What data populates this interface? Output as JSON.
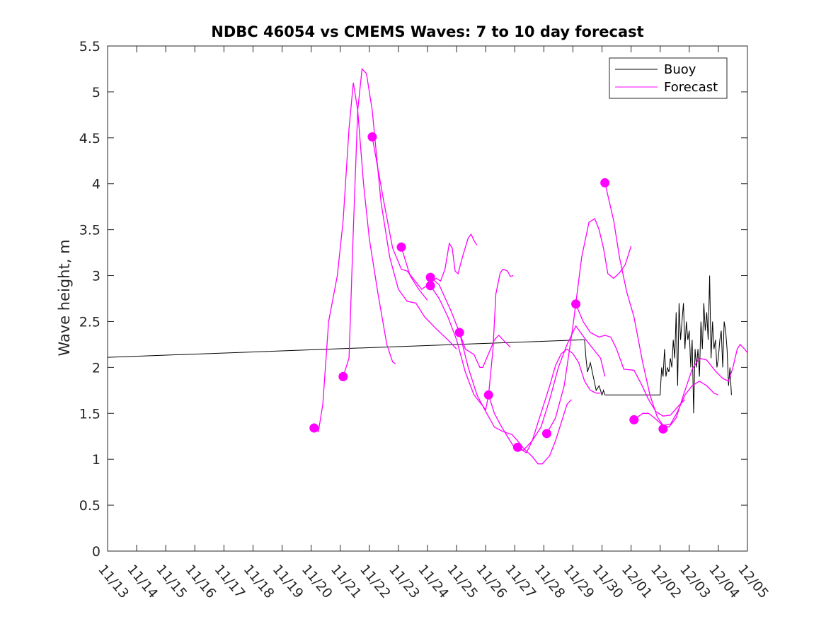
{
  "chart_data": {
    "type": "line",
    "title": "NDBC 46054 vs CMEMS Waves: 7 to 10 day forecast",
    "xlabel": "",
    "ylabel": "Wave height, m",
    "x_unit": "days since 11/13",
    "xlim": [
      0,
      22
    ],
    "ylim": [
      0,
      5.5
    ],
    "xticks": [
      0,
      1,
      2,
      3,
      4,
      5,
      6,
      7,
      8,
      9,
      10,
      11,
      12,
      13,
      14,
      15,
      16,
      17,
      18,
      19,
      20,
      21,
      22
    ],
    "xtick_labels": [
      "11/13",
      "11/14",
      "11/15",
      "11/16",
      "11/17",
      "11/18",
      "11/19",
      "11/20",
      "11/21",
      "11/22",
      "11/23",
      "11/24",
      "11/25",
      "11/26",
      "11/27",
      "11/28",
      "11/29",
      "11/30",
      "12/01",
      "12/02",
      "12/03",
      "12/04",
      "12/05"
    ],
    "yticks": [
      0,
      0.5,
      1,
      1.5,
      2,
      2.5,
      3,
      3.5,
      4,
      4.5,
      5,
      5.5
    ],
    "ytick_labels": [
      "0",
      "0.5",
      "1",
      "1.5",
      "2",
      "2.5",
      "3",
      "3.5",
      "4",
      "4.5",
      "5",
      "5.5"
    ],
    "legend": {
      "position": "top-right",
      "entries": [
        {
          "label": "Buoy",
          "color": "#000000"
        },
        {
          "label": "Forecast",
          "color": "#ff00ff"
        }
      ]
    },
    "buoy": {
      "name": "Buoy",
      "color": "#000000",
      "points": [
        [
          0,
          2.11
        ],
        [
          16.3,
          2.3
        ],
        [
          16.4,
          2.3
        ],
        [
          16.45,
          2.1
        ],
        [
          16.5,
          1.95
        ],
        [
          16.6,
          2.05
        ],
        [
          16.7,
          1.9
        ],
        [
          16.8,
          1.75
        ],
        [
          16.9,
          1.8
        ],
        [
          17.0,
          1.7
        ],
        [
          17.05,
          1.75
        ],
        [
          17.1,
          1.7
        ],
        [
          19.0,
          1.7
        ],
        [
          19.05,
          2.0
        ],
        [
          19.1,
          1.9
        ],
        [
          19.15,
          2.2
        ],
        [
          19.2,
          1.9
        ],
        [
          19.25,
          2.0
        ],
        [
          19.3,
          1.95
        ],
        [
          19.35,
          2.1
        ],
        [
          19.4,
          2.0
        ],
        [
          19.45,
          2.3
        ],
        [
          19.5,
          2.1
        ],
        [
          19.55,
          2.6
        ],
        [
          19.6,
          1.8
        ],
        [
          19.65,
          2.7
        ],
        [
          19.7,
          2.3
        ],
        [
          19.75,
          2.5
        ],
        [
          19.8,
          2.7
        ],
        [
          19.85,
          2.2
        ],
        [
          19.9,
          2.5
        ],
        [
          19.95,
          2.3
        ],
        [
          20.0,
          2.4
        ],
        [
          20.05,
          2.0
        ],
        [
          20.1,
          2.3
        ],
        [
          20.15,
          1.5
        ],
        [
          20.2,
          2.2
        ],
        [
          20.25,
          2.0
        ],
        [
          20.3,
          2.2
        ],
        [
          20.35,
          1.9
        ],
        [
          20.4,
          2.5
        ],
        [
          20.45,
          2.2
        ],
        [
          20.5,
          2.7
        ],
        [
          20.55,
          2.4
        ],
        [
          20.6,
          2.6
        ],
        [
          20.65,
          2.3
        ],
        [
          20.7,
          3.0
        ],
        [
          20.75,
          2.1
        ],
        [
          20.8,
          2.5
        ],
        [
          20.85,
          2.2
        ],
        [
          20.9,
          2.3
        ],
        [
          20.95,
          2.0
        ],
        [
          21.0,
          2.1
        ],
        [
          21.05,
          2.3
        ],
        [
          21.1,
          2.4
        ],
        [
          21.15,
          2.0
        ],
        [
          21.2,
          2.5
        ],
        [
          21.25,
          2.4
        ],
        [
          21.3,
          2.2
        ],
        [
          21.35,
          1.8
        ],
        [
          21.4,
          2.0
        ],
        [
          21.45,
          1.7
        ]
      ]
    },
    "series": [
      {
        "name": "Forecast",
        "color": "#ff00ff",
        "points": [
          [
            7.1,
            1.34
          ],
          [
            7.25,
            1.3
          ],
          [
            7.4,
            1.6
          ],
          [
            7.6,
            2.5
          ],
          [
            7.9,
            3.0
          ],
          [
            8.1,
            3.6
          ],
          [
            8.3,
            4.6
          ],
          [
            8.45,
            5.1
          ],
          [
            8.6,
            4.8
          ],
          [
            8.8,
            4.0
          ],
          [
            9.0,
            3.4
          ],
          [
            9.3,
            2.8
          ],
          [
            9.6,
            2.25
          ],
          [
            9.8,
            2.06
          ],
          [
            9.9,
            2.04
          ]
        ]
      },
      {
        "name": "Forecast",
        "color": "#ff00ff",
        "points": [
          [
            8.1,
            1.9
          ],
          [
            8.3,
            2.1
          ],
          [
            8.45,
            3.5
          ],
          [
            8.6,
            4.8
          ],
          [
            8.75,
            5.25
          ],
          [
            8.9,
            5.2
          ],
          [
            9.1,
            4.8
          ],
          [
            9.4,
            3.8
          ],
          [
            9.7,
            3.2
          ],
          [
            10.0,
            2.85
          ],
          [
            10.3,
            2.72
          ],
          [
            10.6,
            2.7
          ],
          [
            10.9,
            2.55
          ],
          [
            11.3,
            2.42
          ],
          [
            11.7,
            2.3
          ],
          [
            12.0,
            2.2
          ]
        ]
      },
      {
        "name": "Forecast",
        "color": "#ff00ff",
        "points": [
          [
            9.1,
            4.51
          ],
          [
            9.5,
            3.8
          ],
          [
            9.8,
            3.3
          ],
          [
            10.1,
            3.07
          ],
          [
            10.3,
            3.05
          ],
          [
            10.5,
            2.97
          ],
          [
            10.8,
            2.85
          ],
          [
            11.1,
            2.92
          ],
          [
            11.3,
            2.97
          ],
          [
            11.45,
            2.94
          ],
          [
            11.6,
            3.07
          ],
          [
            11.75,
            3.35
          ],
          [
            11.85,
            3.3
          ],
          [
            11.95,
            3.05
          ],
          [
            12.05,
            3.02
          ],
          [
            12.2,
            3.2
          ],
          [
            12.4,
            3.41
          ],
          [
            12.5,
            3.45
          ],
          [
            12.6,
            3.38
          ],
          [
            12.7,
            3.33
          ]
        ]
      },
      {
        "name": "Forecast",
        "color": "#ff00ff",
        "points": [
          [
            10.1,
            3.31
          ],
          [
            10.4,
            3.0
          ],
          [
            10.7,
            2.85
          ],
          [
            11.0,
            2.73
          ]
        ]
      },
      {
        "name": "Forecast",
        "color": "#ff00ff",
        "points": [
          [
            11.1,
            2.98
          ],
          [
            11.4,
            2.9
          ],
          [
            11.8,
            2.62
          ],
          [
            12.1,
            2.38
          ],
          [
            12.3,
            2.2
          ],
          [
            12.6,
            2.14
          ],
          [
            12.8,
            2.0
          ],
          [
            12.9,
            2.0
          ],
          [
            13.1,
            2.15
          ],
          [
            13.3,
            2.3
          ],
          [
            13.45,
            2.35
          ],
          [
            13.6,
            2.3
          ],
          [
            13.85,
            2.22
          ]
        ]
      },
      {
        "name": "Forecast",
        "color": "#ff00ff",
        "points": [
          [
            11.1,
            2.89
          ],
          [
            11.4,
            2.75
          ],
          [
            11.7,
            2.55
          ],
          [
            12.0,
            2.3
          ],
          [
            12.3,
            1.95
          ],
          [
            12.6,
            1.7
          ],
          [
            12.9,
            1.58
          ],
          [
            13.0,
            1.54
          ],
          [
            13.1,
            1.7
          ],
          [
            13.25,
            2.2
          ],
          [
            13.35,
            2.8
          ],
          [
            13.5,
            3.03
          ],
          [
            13.6,
            3.07
          ],
          [
            13.75,
            3.05
          ],
          [
            13.85,
            2.99
          ],
          [
            13.95,
            3.0
          ]
        ]
      },
      {
        "name": "Forecast",
        "color": "#ff00ff",
        "points": [
          [
            12.1,
            2.38
          ],
          [
            12.4,
            2.0
          ],
          [
            12.7,
            1.7
          ],
          [
            13.0,
            1.52
          ],
          [
            13.3,
            1.35
          ],
          [
            13.6,
            1.3
          ],
          [
            13.9,
            1.27
          ],
          [
            14.1,
            1.2
          ],
          [
            14.3,
            1.12
          ],
          [
            14.6,
            1.03
          ],
          [
            14.8,
            0.95
          ],
          [
            14.95,
            0.95
          ],
          [
            15.2,
            1.04
          ],
          [
            15.4,
            1.2
          ],
          [
            15.6,
            1.4
          ],
          [
            15.8,
            1.6
          ],
          [
            15.95,
            1.65
          ]
        ]
      },
      {
        "name": "Forecast",
        "color": "#ff00ff",
        "points": [
          [
            13.1,
            1.7
          ],
          [
            13.3,
            1.5
          ],
          [
            13.5,
            1.38
          ],
          [
            13.8,
            1.22
          ],
          [
            14.0,
            1.12
          ],
          [
            14.3,
            1.1
          ],
          [
            14.6,
            1.2
          ],
          [
            14.9,
            1.35
          ],
          [
            15.2,
            1.65
          ],
          [
            15.5,
            2.0
          ],
          [
            15.8,
            2.25
          ],
          [
            16.1,
            2.45
          ],
          [
            16.4,
            2.32
          ],
          [
            16.7,
            2.2
          ],
          [
            16.95,
            2.1
          ],
          [
            17.1,
            1.9
          ]
        ]
      },
      {
        "name": "Forecast",
        "color": "#ff00ff",
        "points": [
          [
            14.1,
            1.13
          ],
          [
            14.4,
            1.07
          ],
          [
            14.6,
            1.2
          ],
          [
            14.8,
            1.4
          ],
          [
            15.0,
            1.6
          ],
          [
            15.2,
            1.8
          ],
          [
            15.4,
            2.02
          ],
          [
            15.6,
            2.15
          ],
          [
            15.8,
            2.2
          ],
          [
            16.0,
            2.15
          ],
          [
            16.2,
            2.05
          ],
          [
            16.4,
            1.85
          ],
          [
            16.6,
            1.75
          ],
          [
            16.8,
            1.72
          ],
          [
            16.95,
            1.72
          ]
        ]
      },
      {
        "name": "Forecast",
        "color": "#ff00ff",
        "points": [
          [
            15.1,
            1.28
          ],
          [
            15.4,
            1.45
          ],
          [
            15.7,
            1.8
          ],
          [
            16.0,
            2.45
          ],
          [
            16.3,
            3.2
          ],
          [
            16.55,
            3.58
          ],
          [
            16.75,
            3.62
          ],
          [
            16.9,
            3.5
          ],
          [
            17.05,
            3.3
          ],
          [
            17.2,
            3.02
          ],
          [
            17.4,
            2.97
          ],
          [
            17.6,
            3.03
          ],
          [
            17.8,
            3.12
          ],
          [
            18.0,
            3.32
          ]
        ]
      },
      {
        "name": "Forecast",
        "color": "#ff00ff",
        "points": [
          [
            16.1,
            2.69
          ],
          [
            16.35,
            2.5
          ],
          [
            16.6,
            2.38
          ],
          [
            16.9,
            2.33
          ],
          [
            17.1,
            2.35
          ],
          [
            17.3,
            2.33
          ],
          [
            17.5,
            2.2
          ],
          [
            17.75,
            1.98
          ],
          [
            18.1,
            1.97
          ],
          [
            18.35,
            1.82
          ],
          [
            18.6,
            1.65
          ],
          [
            18.85,
            1.52
          ],
          [
            19.1,
            1.47
          ],
          [
            19.35,
            1.48
          ],
          [
            19.6,
            1.57
          ],
          [
            19.85,
            1.65
          ]
        ]
      },
      {
        "name": "Forecast",
        "color": "#ff00ff",
        "points": [
          [
            17.1,
            4.01
          ],
          [
            17.4,
            3.6
          ],
          [
            17.6,
            3.2
          ],
          [
            17.85,
            2.82
          ],
          [
            18.1,
            2.55
          ],
          [
            18.4,
            2.05
          ],
          [
            18.65,
            1.7
          ],
          [
            18.9,
            1.46
          ],
          [
            19.1,
            1.37
          ],
          [
            19.35,
            1.38
          ],
          [
            19.6,
            1.52
          ],
          [
            19.85,
            1.7
          ],
          [
            20.1,
            1.8
          ],
          [
            20.35,
            1.85
          ],
          [
            20.6,
            1.8
          ],
          [
            20.85,
            1.72
          ],
          [
            21.0,
            1.7
          ]
        ]
      },
      {
        "name": "Forecast",
        "color": "#ff00ff",
        "points": [
          [
            18.1,
            1.43
          ],
          [
            18.4,
            1.5
          ],
          [
            18.6,
            1.5
          ],
          [
            18.8,
            1.45
          ],
          [
            19.05,
            1.38
          ],
          [
            19.3,
            1.35
          ],
          [
            19.55,
            1.45
          ],
          [
            19.8,
            1.7
          ],
          [
            20.1,
            1.98
          ],
          [
            20.35,
            2.1
          ],
          [
            20.6,
            2.08
          ],
          [
            20.9,
            1.96
          ],
          [
            21.15,
            1.88
          ],
          [
            21.35,
            1.85
          ],
          [
            21.5,
            2.0
          ],
          [
            21.65,
            2.2
          ],
          [
            21.75,
            2.25
          ],
          [
            21.9,
            2.2
          ],
          [
            22.0,
            2.16
          ]
        ]
      }
    ],
    "markers": [
      [
        7.1,
        1.34
      ],
      [
        8.1,
        1.9
      ],
      [
        9.1,
        4.51
      ],
      [
        10.1,
        3.31
      ],
      [
        11.1,
        2.98
      ],
      [
        11.1,
        2.89
      ],
      [
        12.1,
        2.38
      ],
      [
        13.1,
        1.7
      ],
      [
        14.1,
        1.13
      ],
      [
        15.1,
        1.28
      ],
      [
        16.1,
        2.69
      ],
      [
        17.1,
        4.01
      ],
      [
        18.1,
        1.43
      ],
      [
        19.1,
        1.33
      ]
    ]
  }
}
